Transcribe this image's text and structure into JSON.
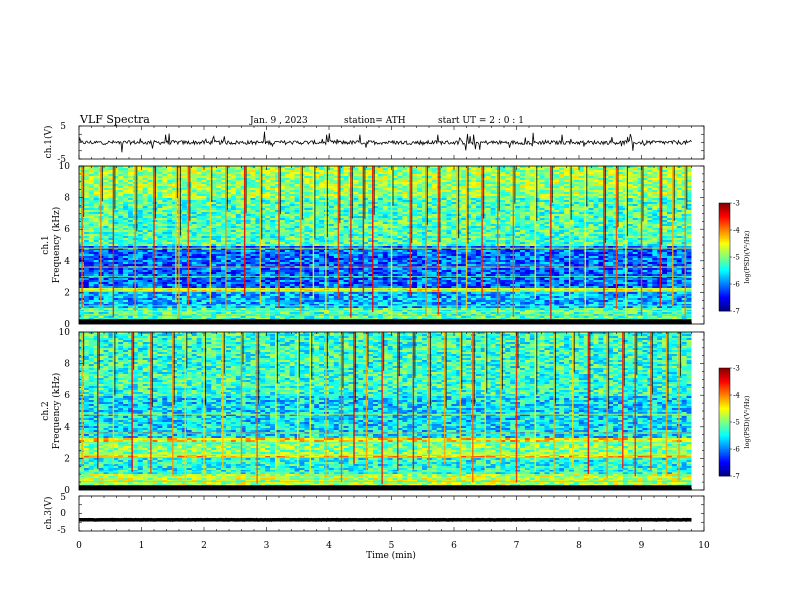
{
  "header": {
    "title": "VLF  Spectra",
    "date": "Jan.  9  , 2023",
    "station": "station= ATH",
    "start": "start  UT  =    2  : 0   : 1"
  },
  "chart_data": [
    {
      "panel": "ch1-waveform",
      "type": "line",
      "ylabel": "ch.1(V)",
      "ylim": [
        -5,
        5
      ],
      "yticks": [
        "5",
        "-5"
      ],
      "xlim": [
        0,
        10
      ],
      "trace_end_min": 9.8,
      "baseline_v": 0.0,
      "noise_amplitude_v": 1.2,
      "color": "#000000"
    },
    {
      "panel": "ch1-spectrogram",
      "type": "heatmap",
      "ylabel": "ch.1\nFrequency  (kHz)",
      "ylim": [
        0,
        10
      ],
      "yticks": [
        "0",
        "2",
        "4",
        "6",
        "8",
        "10"
      ],
      "xlim": [
        0,
        10
      ],
      "colorbar": {
        "label": "log(PSD)(V²/Hz)",
        "range": [
          -7,
          -3
        ],
        "ticks": [
          "-3",
          "-4",
          "-5",
          "-6",
          "-7"
        ]
      },
      "bands_khz": [
        {
          "from": 0.0,
          "to": 0.3,
          "level": -7.0
        },
        {
          "from": 0.3,
          "to": 1.0,
          "level": -5.2
        },
        {
          "from": 1.0,
          "to": 2.0,
          "level": -5.8
        },
        {
          "from": 2.0,
          "to": 2.3,
          "level": -4.6
        },
        {
          "from": 2.3,
          "to": 5.0,
          "level": -6.1
        },
        {
          "from": 5.0,
          "to": 8.0,
          "level": -5.2
        },
        {
          "from": 8.0,
          "to": 10.0,
          "level": -4.9
        }
      ],
      "sferic_times_min": [
        0.05,
        0.35,
        0.55,
        0.9,
        1.2,
        1.55,
        1.6,
        1.75,
        2.1,
        2.35,
        2.65,
        2.9,
        3.2,
        3.55,
        3.75,
        3.95,
        4.15,
        4.35,
        4.55,
        4.7,
        5.0,
        5.3,
        5.55,
        5.75,
        6.05,
        6.2,
        6.45,
        6.7,
        6.95,
        7.3,
        7.55,
        7.85,
        8.1,
        8.4,
        8.6,
        8.75,
        9.0,
        9.3,
        9.5,
        9.7
      ]
    },
    {
      "panel": "ch2-spectrogram",
      "type": "heatmap",
      "ylabel": "ch.2\nFrequency  (kHz)",
      "ylim": [
        0,
        10
      ],
      "yticks": [
        "0",
        "2",
        "4",
        "6",
        "8",
        "10"
      ],
      "xlim": [
        0,
        10
      ],
      "colorbar": {
        "label": "log(PSD)(V²/Hz)",
        "range": [
          -7,
          -3
        ],
        "ticks": [
          "-3",
          "-4",
          "-5",
          "-6",
          "-7"
        ]
      },
      "bands_khz": [
        {
          "from": 0.0,
          "to": 0.3,
          "level": -7.0
        },
        {
          "from": 0.3,
          "to": 1.0,
          "level": -4.8
        },
        {
          "from": 1.0,
          "to": 2.0,
          "level": -5.4
        },
        {
          "from": 2.0,
          "to": 2.2,
          "level": -4.3
        },
        {
          "from": 2.2,
          "to": 3.0,
          "level": -5.0
        },
        {
          "from": 3.0,
          "to": 3.3,
          "level": -4.4
        },
        {
          "from": 3.3,
          "to": 6.0,
          "level": -5.6
        },
        {
          "from": 6.0,
          "to": 10.0,
          "level": -5.3
        }
      ],
      "sferic_times_min": [
        0.05,
        0.3,
        0.55,
        0.85,
        1.15,
        1.5,
        1.7,
        2.0,
        2.3,
        2.6,
        2.85,
        3.15,
        3.5,
        3.7,
        3.95,
        4.2,
        4.4,
        4.6,
        4.85,
        5.1,
        5.35,
        5.6,
        5.85,
        6.1,
        6.3,
        6.5,
        6.75,
        7.0,
        7.3,
        7.6,
        7.9,
        8.15,
        8.45,
        8.7,
        8.9,
        9.15,
        9.4,
        9.6
      ]
    },
    {
      "panel": "ch3-waveform",
      "type": "line",
      "ylabel": "ch.3(V)",
      "ylim": [
        -5,
        5
      ],
      "yticks": [
        "5",
        "0",
        "-5"
      ],
      "xlim": [
        0,
        10
      ],
      "trace_end_min": 9.8,
      "baseline_v": -1.8,
      "noise_amplitude_v": 0.1,
      "color": "#000000"
    }
  ],
  "xaxis": {
    "label": "Time  (min)",
    "ticks": [
      "0",
      "1",
      "2",
      "3",
      "4",
      "5",
      "6",
      "7",
      "8",
      "9",
      "10"
    ]
  }
}
